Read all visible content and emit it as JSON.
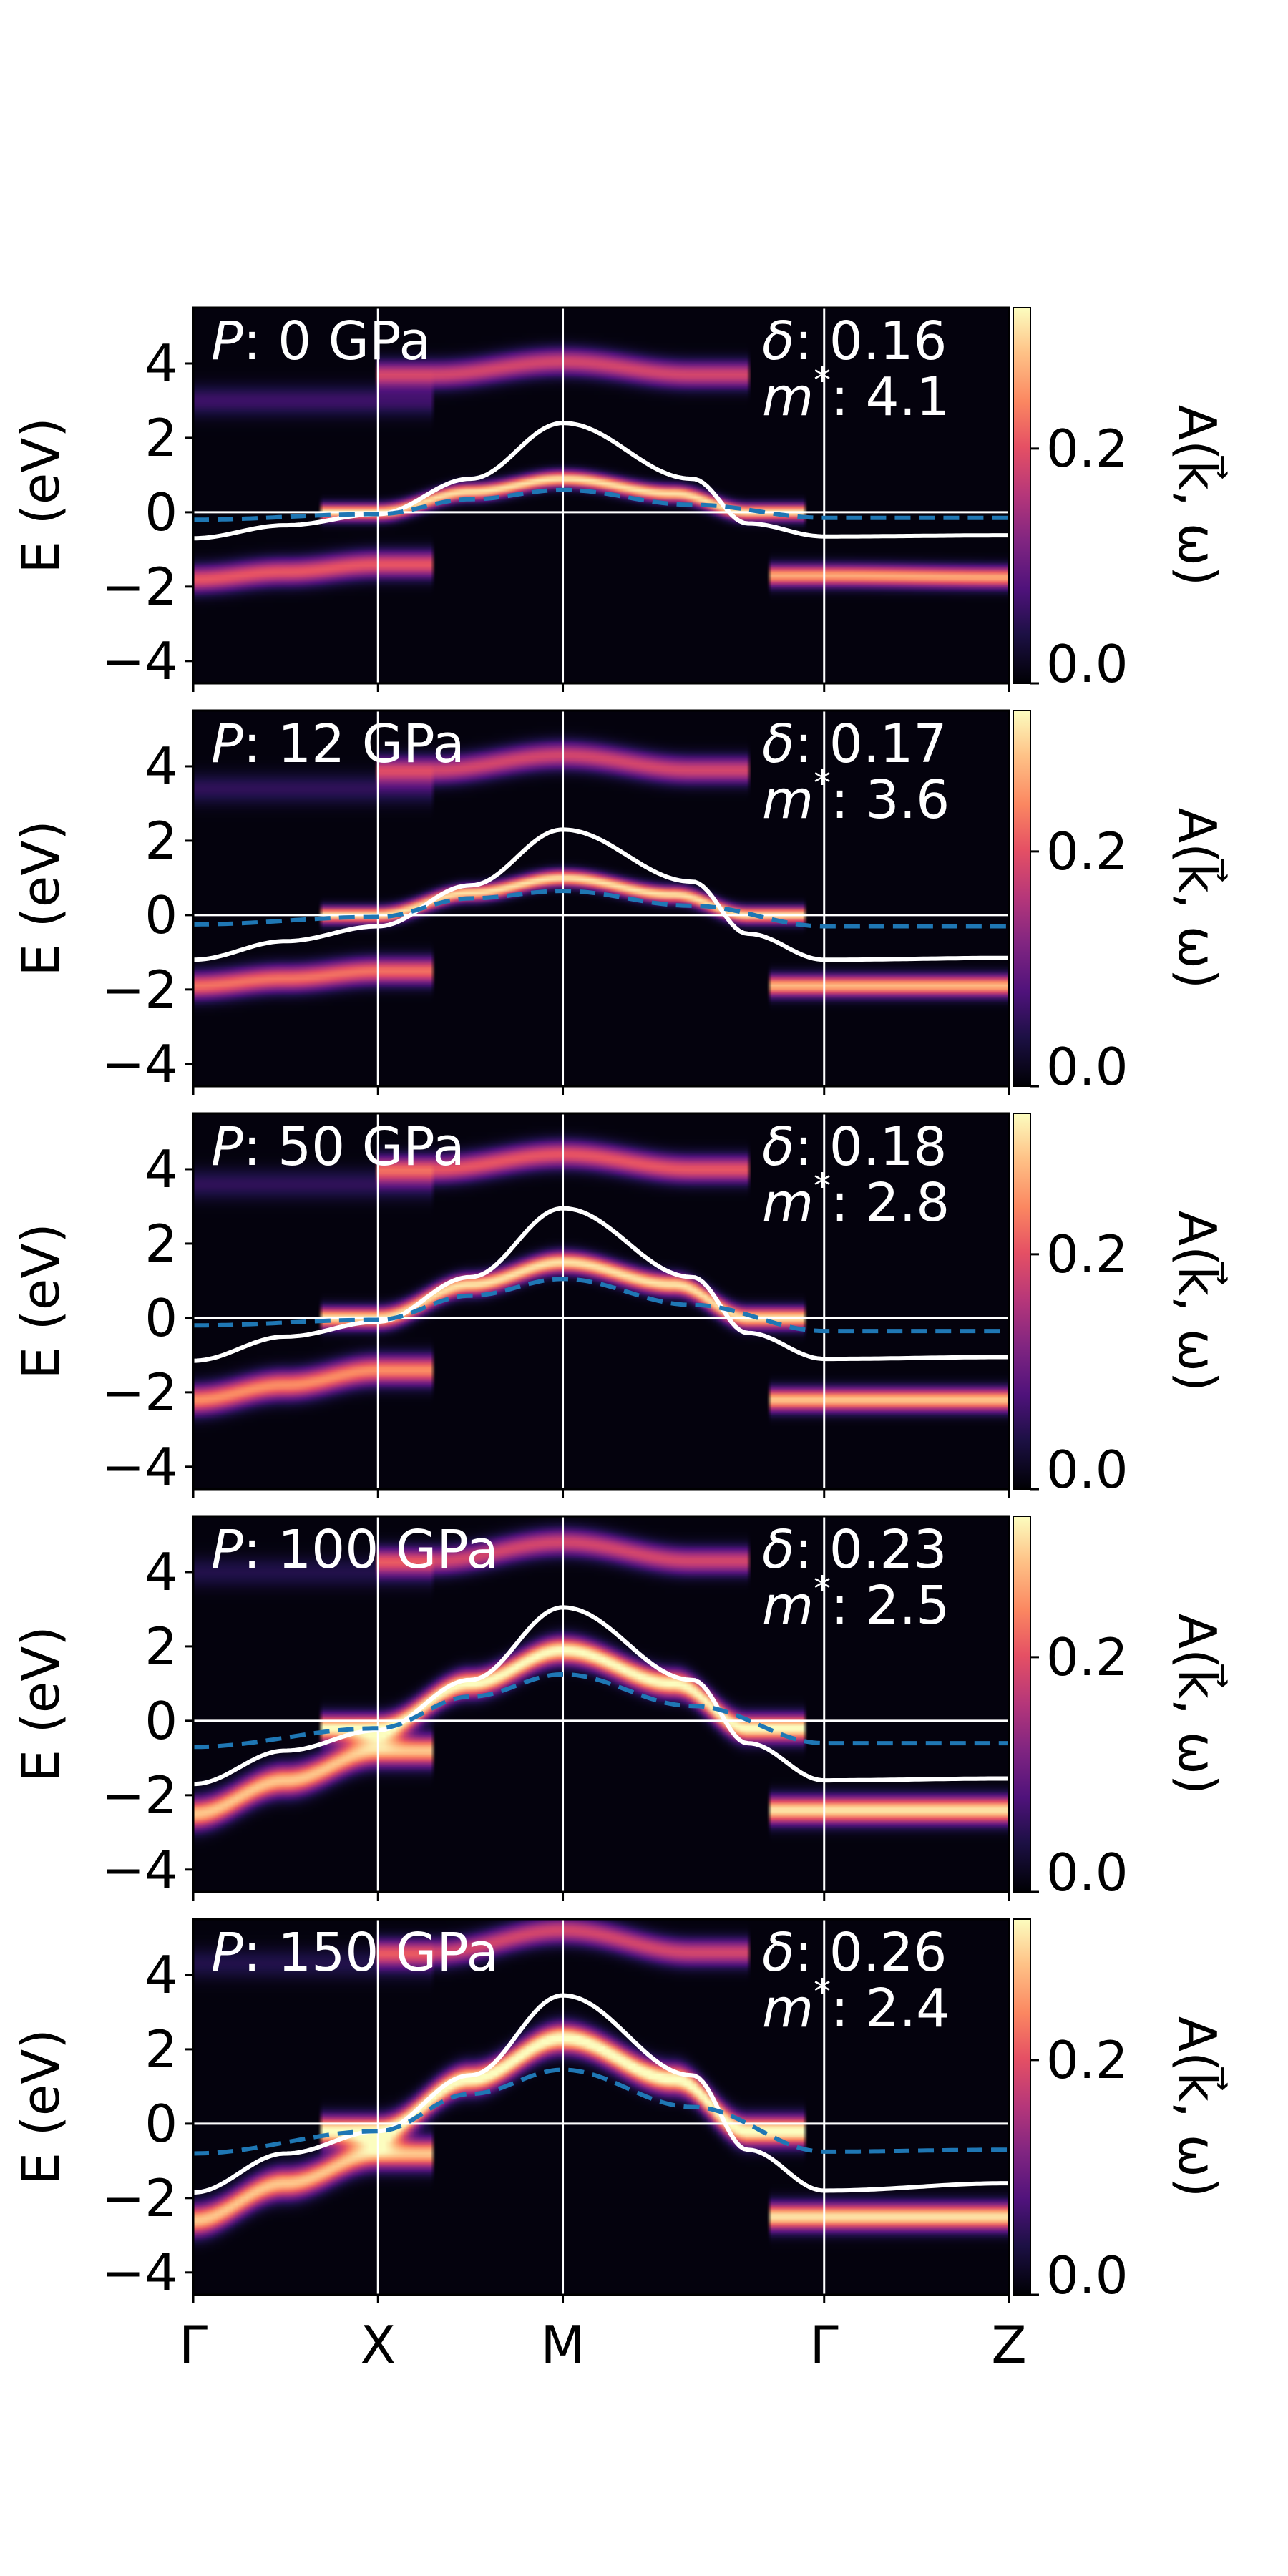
{
  "chart_data": {
    "type": "heatmap",
    "description_kind": "band structure spectral function panels",
    "ylabel": "E (eV)",
    "ylim": [
      -4.6,
      5.5
    ],
    "yticks": [
      -4,
      -2,
      0,
      2,
      4
    ],
    "ytick_labels": [
      "−4",
      "−2",
      "0",
      "2",
      "4"
    ],
    "kpath": {
      "labels": [
        "Γ",
        "X",
        "M",
        "Γ",
        "Z"
      ],
      "positions": [
        0,
        1,
        2,
        3.414,
        4.414
      ]
    },
    "colorbar": {
      "label": "A(k⃗, ω)",
      "colormap": "magma",
      "range": [
        0.0,
        0.32
      ],
      "ticks": [
        0.0,
        0.2
      ],
      "tick_labels": [
        "0.0",
        "0.2"
      ]
    },
    "panels": [
      {
        "pressure_label": "P",
        "pressure_value": ": 0 GPa",
        "delta_label": "δ",
        "delta_value": ": 0.16",
        "mass_label": "m",
        "mass_star": "*",
        "mass_value": ": 4.1",
        "white_band": [
          [
            0,
            -0.7
          ],
          [
            0.5,
            -0.35
          ],
          [
            1,
            -0.05
          ],
          [
            1.5,
            0.9
          ],
          [
            2,
            2.4
          ],
          [
            2.7,
            0.9
          ],
          [
            3.0,
            -0.3
          ],
          [
            3.414,
            -0.65
          ],
          [
            4.414,
            -0.62
          ]
        ],
        "dashed_band": [
          [
            0,
            -0.2
          ],
          [
            1,
            -0.05
          ],
          [
            1.5,
            0.35
          ],
          [
            2,
            0.6
          ],
          [
            2.7,
            0.2
          ],
          [
            3.414,
            -0.15
          ],
          [
            4.414,
            -0.15
          ]
        ],
        "intensity_bands": [
          {
            "pts": [
              [
                1,
                0.0
              ],
              [
                1.5,
                0.55
              ],
              [
                2,
                0.9
              ],
              [
                2.6,
                0.5
              ],
              [
                3.0,
                0.0
              ]
            ],
            "width": 0.22,
            "amp": 0.3
          },
          {
            "pts": [
              [
                0,
                -1.8
              ],
              [
                0.5,
                -1.6
              ],
              [
                1,
                -1.4
              ]
            ],
            "width": 0.35,
            "amp": 0.2
          },
          {
            "pts": [
              [
                3.414,
                -1.7
              ],
              [
                4.414,
                -1.75
              ]
            ],
            "width": 0.28,
            "amp": 0.26
          },
          {
            "pts": [
              [
                1.3,
                3.7
              ],
              [
                2,
                4.05
              ],
              [
                2.7,
                3.7
              ]
            ],
            "width": 0.35,
            "amp": 0.18
          },
          {
            "pts": [
              [
                0,
                3.0
              ],
              [
                1,
                3.0
              ]
            ],
            "width": 0.4,
            "amp": 0.06
          }
        ]
      },
      {
        "pressure_label": "P",
        "pressure_value": ": 12 GPa",
        "delta_label": "δ",
        "delta_value": ": 0.17",
        "mass_label": "m",
        "mass_star": "*",
        "mass_value": ": 3.6",
        "white_band": [
          [
            0,
            -1.2
          ],
          [
            0.5,
            -0.7
          ],
          [
            1,
            -0.3
          ],
          [
            1.5,
            0.8
          ],
          [
            2,
            2.3
          ],
          [
            2.7,
            0.9
          ],
          [
            3.0,
            -0.5
          ],
          [
            3.414,
            -1.2
          ],
          [
            4.414,
            -1.15
          ]
        ],
        "dashed_band": [
          [
            0,
            -0.25
          ],
          [
            1,
            -0.05
          ],
          [
            1.5,
            0.45
          ],
          [
            2,
            0.65
          ],
          [
            2.7,
            0.25
          ],
          [
            3.414,
            -0.3
          ],
          [
            4.414,
            -0.3
          ]
        ],
        "intensity_bands": [
          {
            "pts": [
              [
                1,
                0.0
              ],
              [
                1.5,
                0.6
              ],
              [
                2,
                1.0
              ],
              [
                2.6,
                0.55
              ],
              [
                3.0,
                0.0
              ]
            ],
            "width": 0.22,
            "amp": 0.3
          },
          {
            "pts": [
              [
                0,
                -1.9
              ],
              [
                0.5,
                -1.7
              ],
              [
                1,
                -1.5
              ]
            ],
            "width": 0.35,
            "amp": 0.22
          },
          {
            "pts": [
              [
                3.414,
                -1.9
              ],
              [
                4.414,
                -1.9
              ]
            ],
            "width": 0.28,
            "amp": 0.27
          },
          {
            "pts": [
              [
                1.3,
                3.9
              ],
              [
                2,
                4.3
              ],
              [
                2.7,
                3.9
              ]
            ],
            "width": 0.35,
            "amp": 0.18
          },
          {
            "pts": [
              [
                0,
                3.4
              ],
              [
                1,
                3.4
              ]
            ],
            "width": 0.4,
            "amp": 0.05
          }
        ]
      },
      {
        "pressure_label": "P",
        "pressure_value": ": 50 GPa",
        "delta_label": "δ",
        "delta_value": ": 0.18",
        "mass_label": "m",
        "mass_star": "*",
        "mass_value": ": 2.8",
        "white_band": [
          [
            0,
            -1.15
          ],
          [
            0.5,
            -0.5
          ],
          [
            1,
            -0.1
          ],
          [
            1.5,
            1.1
          ],
          [
            2,
            2.95
          ],
          [
            2.7,
            1.1
          ],
          [
            3.0,
            -0.4
          ],
          [
            3.414,
            -1.1
          ],
          [
            4.414,
            -1.05
          ]
        ],
        "dashed_band": [
          [
            0,
            -0.2
          ],
          [
            1,
            -0.05
          ],
          [
            1.5,
            0.6
          ],
          [
            2,
            1.05
          ],
          [
            2.7,
            0.35
          ],
          [
            3.414,
            -0.35
          ],
          [
            4.414,
            -0.35
          ]
        ],
        "intensity_bands": [
          {
            "pts": [
              [
                1,
                0.0
              ],
              [
                1.5,
                0.9
              ],
              [
                2,
                1.5
              ],
              [
                2.6,
                0.9
              ],
              [
                3.0,
                0.0
              ]
            ],
            "width": 0.28,
            "amp": 0.3
          },
          {
            "pts": [
              [
                0,
                -2.2
              ],
              [
                0.5,
                -1.8
              ],
              [
                1,
                -1.4
              ]
            ],
            "width": 0.38,
            "amp": 0.24
          },
          {
            "pts": [
              [
                3.414,
                -2.2
              ],
              [
                4.414,
                -2.2
              ]
            ],
            "width": 0.3,
            "amp": 0.28
          },
          {
            "pts": [
              [
                1.3,
                4.0
              ],
              [
                2,
                4.4
              ],
              [
                2.7,
                4.0
              ]
            ],
            "width": 0.35,
            "amp": 0.2
          },
          {
            "pts": [
              [
                0,
                3.6
              ],
              [
                1,
                3.6
              ]
            ],
            "width": 0.4,
            "amp": 0.05
          }
        ]
      },
      {
        "pressure_label": "P",
        "pressure_value": ": 100 GPa",
        "delta_label": "δ",
        "delta_value": ": 0.23",
        "mass_label": "m",
        "mass_star": "*",
        "mass_value": ": 2.5",
        "white_band": [
          [
            0,
            -1.7
          ],
          [
            0.5,
            -0.8
          ],
          [
            1,
            -0.25
          ],
          [
            1.5,
            1.1
          ],
          [
            2,
            3.05
          ],
          [
            2.7,
            1.1
          ],
          [
            3.0,
            -0.6
          ],
          [
            3.414,
            -1.6
          ],
          [
            4.414,
            -1.55
          ]
        ],
        "dashed_band": [
          [
            0,
            -0.7
          ],
          [
            1,
            -0.2
          ],
          [
            1.5,
            0.65
          ],
          [
            2,
            1.25
          ],
          [
            2.7,
            0.4
          ],
          [
            3.414,
            -0.6
          ],
          [
            4.414,
            -0.6
          ]
        ],
        "intensity_bands": [
          {
            "pts": [
              [
                1,
                -0.2
              ],
              [
                1.5,
                1.0
              ],
              [
                2,
                1.9
              ],
              [
                2.6,
                1.0
              ],
              [
                3.0,
                -0.2
              ]
            ],
            "width": 0.35,
            "amp": 0.32
          },
          {
            "pts": [
              [
                0,
                -2.5
              ],
              [
                0.5,
                -1.6
              ],
              [
                1,
                -0.8
              ]
            ],
            "width": 0.4,
            "amp": 0.28
          },
          {
            "pts": [
              [
                3.414,
                -2.4
              ],
              [
                4.414,
                -2.4
              ]
            ],
            "width": 0.35,
            "amp": 0.3
          },
          {
            "pts": [
              [
                1.3,
                4.3
              ],
              [
                2,
                4.8
              ],
              [
                2.7,
                4.3
              ]
            ],
            "width": 0.35,
            "amp": 0.18
          },
          {
            "pts": [
              [
                0,
                4.0
              ],
              [
                1,
                4.0
              ]
            ],
            "width": 0.4,
            "amp": 0.04
          }
        ]
      },
      {
        "pressure_label": "P",
        "pressure_value": ": 150 GPa",
        "delta_label": "δ",
        "delta_value": ": 0.26",
        "mass_label": "m",
        "mass_star": "*",
        "mass_value": ": 2.4",
        "white_band": [
          [
            0,
            -1.85
          ],
          [
            0.5,
            -0.8
          ],
          [
            1,
            -0.2
          ],
          [
            1.5,
            1.3
          ],
          [
            2,
            3.45
          ],
          [
            2.7,
            1.3
          ],
          [
            3.0,
            -0.7
          ],
          [
            3.414,
            -1.8
          ],
          [
            4.414,
            -1.6
          ]
        ],
        "dashed_band": [
          [
            0,
            -0.8
          ],
          [
            1,
            -0.2
          ],
          [
            1.5,
            0.8
          ],
          [
            2,
            1.45
          ],
          [
            2.7,
            0.45
          ],
          [
            3.414,
            -0.75
          ],
          [
            4.414,
            -0.7
          ]
        ],
        "intensity_bands": [
          {
            "pts": [
              [
                1,
                -0.2
              ],
              [
                1.5,
                1.2
              ],
              [
                2,
                2.3
              ],
              [
                2.6,
                1.2
              ],
              [
                3.0,
                -0.2
              ]
            ],
            "width": 0.38,
            "amp": 0.33
          },
          {
            "pts": [
              [
                0,
                -2.6
              ],
              [
                0.5,
                -1.6
              ],
              [
                1,
                -0.8
              ]
            ],
            "width": 0.4,
            "amp": 0.28
          },
          {
            "pts": [
              [
                3.414,
                -2.5
              ],
              [
                4.414,
                -2.5
              ]
            ],
            "width": 0.35,
            "amp": 0.3
          },
          {
            "pts": [
              [
                1.3,
                4.6
              ],
              [
                2,
                5.2
              ],
              [
                2.7,
                4.6
              ]
            ],
            "width": 0.35,
            "amp": 0.18
          },
          {
            "pts": [
              [
                0,
                4.3
              ],
              [
                1,
                4.3
              ]
            ],
            "width": 0.4,
            "amp": 0.04
          }
        ]
      }
    ]
  },
  "colors": {
    "white_band": "#ffffff",
    "dashed_band": "#1f77b4",
    "axes": "#000000",
    "background": "#000004"
  }
}
